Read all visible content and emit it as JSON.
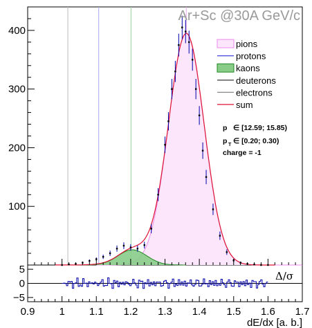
{
  "chart_data": {
    "type": "line",
    "title": "Ar+Sc @30A GeV/c",
    "xlabel": "dE/dx [a. b.]",
    "ylabel": "",
    "xlim": [
      0.9,
      1.7
    ],
    "ylim": [
      0,
      440
    ],
    "x_ticks": [
      "0.9",
      "1",
      "1.1",
      "1.2",
      "1.3",
      "1.4",
      "1.5",
      "1.6",
      "1.7"
    ],
    "y_ticks": [
      "100",
      "200",
      "300",
      "400"
    ],
    "legend_position": "top-right",
    "legend": [
      "pions",
      "protons",
      "kaons",
      "deuterons",
      "electrons",
      "sum"
    ],
    "info_lines": [
      "p",
      "∈ [12.59; 15.85)",
      "p",
      "T",
      "∈ [0.20; 0.30)",
      "charge = -1"
    ],
    "vertical_lines": [
      {
        "x": 1.017,
        "color": "#b8b8b8"
      },
      {
        "x": 1.107,
        "color": "#a9a9f0"
      },
      {
        "x": 1.201,
        "color": "#9ad29a"
      },
      {
        "x": 1.362,
        "color": "#e8a8e8"
      }
    ],
    "components": {
      "pions": {
        "amplitude": 395,
        "mean": 1.362,
        "sigma": 0.052,
        "color": "#ee88ee",
        "fill": "#fbe6fb"
      },
      "kaons": {
        "amplitude": 26,
        "mean": 1.205,
        "sigma": 0.042,
        "color": "#228822",
        "fill": "#88cc88"
      },
      "protons": {
        "amplitude": 0.6,
        "mean": 1.107,
        "sigma": 0.04,
        "color": "#4444dd"
      },
      "electrons": {
        "amplitude": 0.3,
        "mean": 1.45,
        "sigma": 0.05,
        "color": "#888888"
      },
      "deuterons": {
        "amplitude": 0.1,
        "mean": 0.95,
        "sigma": 0.04,
        "color": "#222222"
      }
    },
    "data_points": {
      "x": [
        1.0,
        1.02,
        1.04,
        1.06,
        1.08,
        1.1,
        1.12,
        1.14,
        1.16,
        1.18,
        1.2,
        1.22,
        1.24,
        1.26,
        1.28,
        1.3,
        1.31,
        1.32,
        1.33,
        1.34,
        1.35,
        1.36,
        1.37,
        1.38,
        1.39,
        1.4,
        1.41,
        1.42,
        1.44,
        1.46,
        1.48,
        1.5,
        1.52,
        1.54,
        1.56,
        1.58,
        1.6
      ],
      "y": [
        0,
        1,
        2,
        4,
        7,
        10,
        14,
        20,
        28,
        33,
        30,
        28,
        34,
        62,
        120,
        205,
        245,
        300,
        330,
        375,
        405,
        398,
        380,
        350,
        300,
        255,
        195,
        150,
        95,
        50,
        22,
        8,
        4,
        2,
        1,
        0,
        0
      ],
      "err": [
        0,
        1,
        1.5,
        2,
        2.6,
        3,
        3.7,
        4.5,
        5.3,
        5.7,
        5.5,
        5.3,
        5.8,
        7.9,
        11,
        14,
        15.6,
        17.3,
        18.1,
        19.4,
        20.1,
        19.9,
        19.5,
        18.7,
        17.3,
        16,
        14,
        12.2,
        9.7,
        7.1,
        4.7,
        2.8,
        2,
        1.4,
        1,
        0,
        0
      ]
    },
    "ratio_panel": {
      "label": "Δ/σ",
      "ylim": [
        -6.5,
        6.5
      ],
      "y_ticks": [
        "5",
        "0",
        "−5"
      ]
    }
  }
}
